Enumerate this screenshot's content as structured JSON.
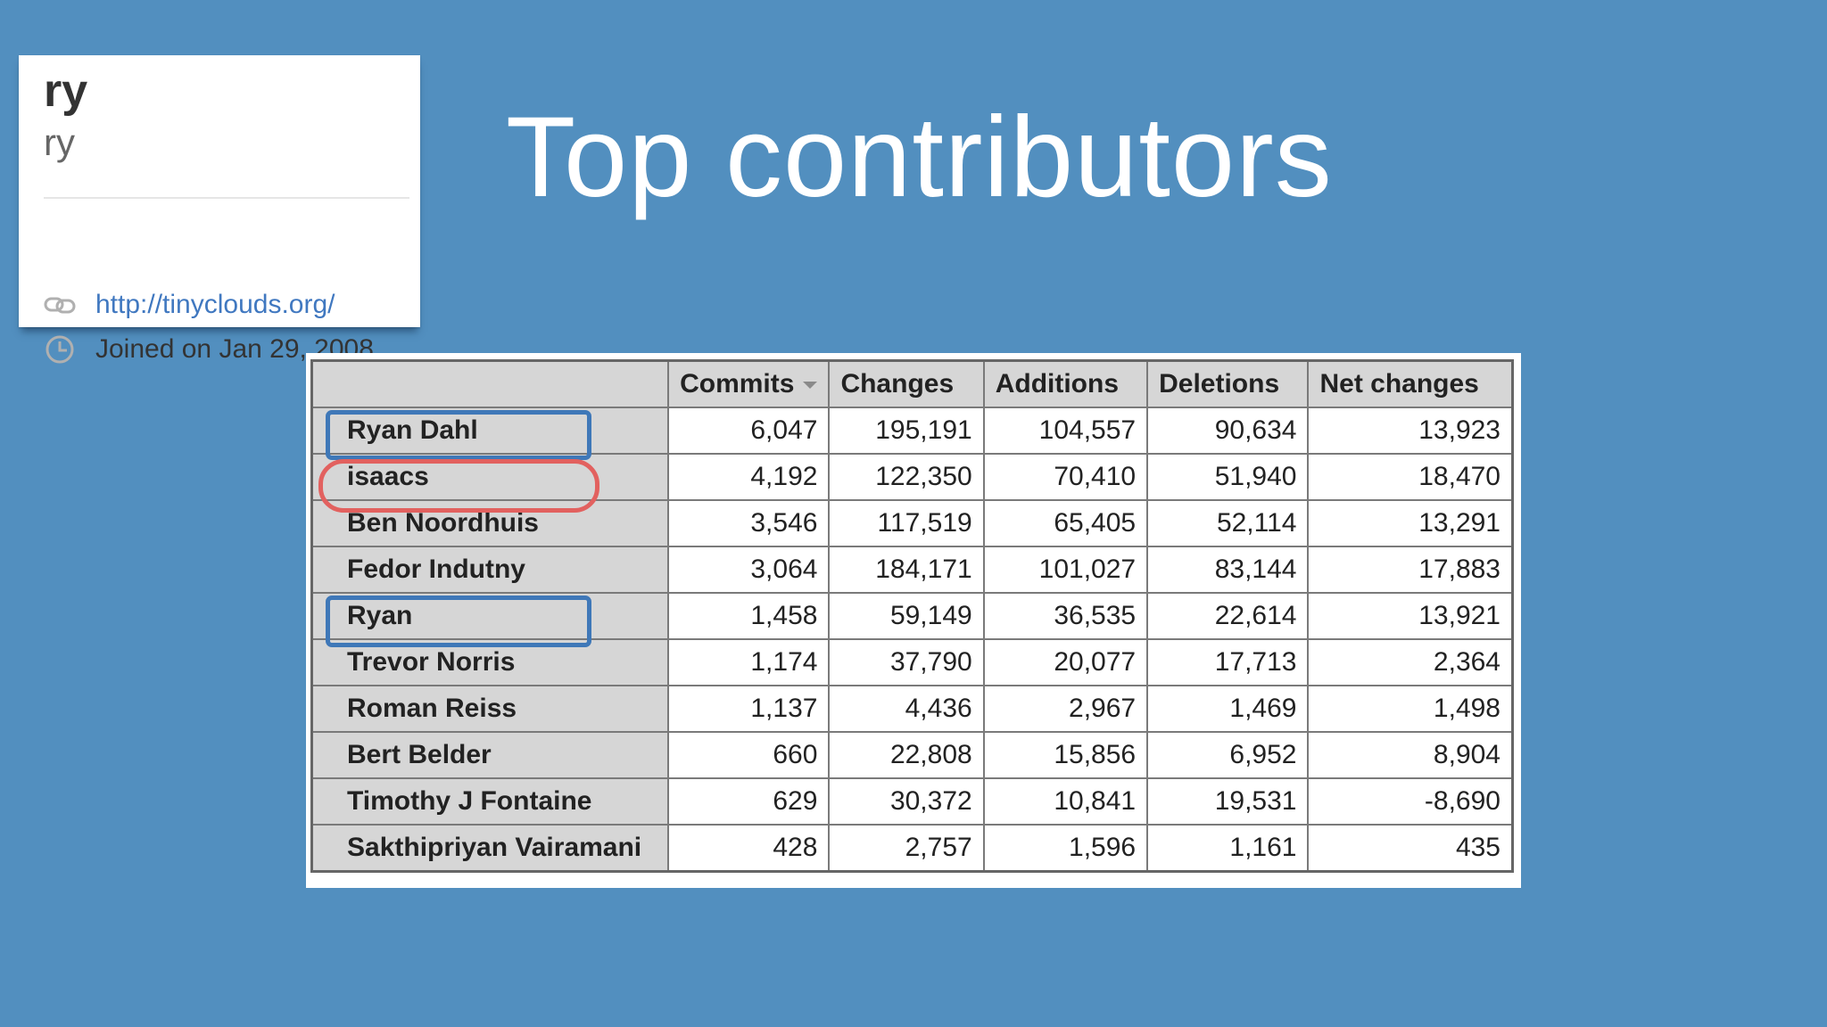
{
  "slide": {
    "title": "Top contributors"
  },
  "profile_card": {
    "username": "ry",
    "login": "ry",
    "link_text": "http://tinyclouds.org/",
    "joined_text": "Joined on Jan 29, 2008",
    "icons": [
      "link-icon",
      "clock-icon"
    ]
  },
  "table": {
    "columns": [
      "",
      "Commits",
      "Changes",
      "Additions",
      "Deletions",
      "Net changes"
    ],
    "sorted_column": "Commits",
    "rows": [
      {
        "name": "Ryan Dahl",
        "commits": "6,047",
        "changes": "195,191",
        "additions": "104,557",
        "deletions": "90,634",
        "net": "13,923"
      },
      {
        "name": "isaacs",
        "commits": "4,192",
        "changes": "122,350",
        "additions": "70,410",
        "deletions": "51,940",
        "net": "18,470"
      },
      {
        "name": "Ben Noordhuis",
        "commits": "3,546",
        "changes": "117,519",
        "additions": "65,405",
        "deletions": "52,114",
        "net": "13,291"
      },
      {
        "name": "Fedor Indutny",
        "commits": "3,064",
        "changes": "184,171",
        "additions": "101,027",
        "deletions": "83,144",
        "net": "17,883"
      },
      {
        "name": "Ryan",
        "commits": "1,458",
        "changes": "59,149",
        "additions": "36,535",
        "deletions": "22,614",
        "net": "13,921"
      },
      {
        "name": "Trevor Norris",
        "commits": "1,174",
        "changes": "37,790",
        "additions": "20,077",
        "deletions": "17,713",
        "net": "2,364"
      },
      {
        "name": "Roman Reiss",
        "commits": "1,137",
        "changes": "4,436",
        "additions": "2,967",
        "deletions": "1,469",
        "net": "1,498"
      },
      {
        "name": "Bert Belder",
        "commits": "660",
        "changes": "22,808",
        "additions": "15,856",
        "deletions": "6,952",
        "net": "8,904"
      },
      {
        "name": "Timothy J Fontaine",
        "commits": "629",
        "changes": "30,372",
        "additions": "10,841",
        "deletions": "19,531",
        "net": "-8,690"
      },
      {
        "name": "Sakthipriyan Vairamani",
        "commits": "428",
        "changes": "2,757",
        "additions": "1,596",
        "deletions": "1,161",
        "net": "435"
      }
    ],
    "highlights": [
      {
        "row": "Ryan Dahl",
        "color": "#3f78b8"
      },
      {
        "row": "isaacs",
        "color": "#e2615f"
      },
      {
        "row": "Ryan",
        "color": "#3f78b8"
      }
    ]
  },
  "colors": {
    "background": "#528fbf",
    "link": "#4078c0",
    "header_bg": "#d6d6d6",
    "highlight_blue": "#3f78b8",
    "highlight_red": "#e2615f"
  }
}
